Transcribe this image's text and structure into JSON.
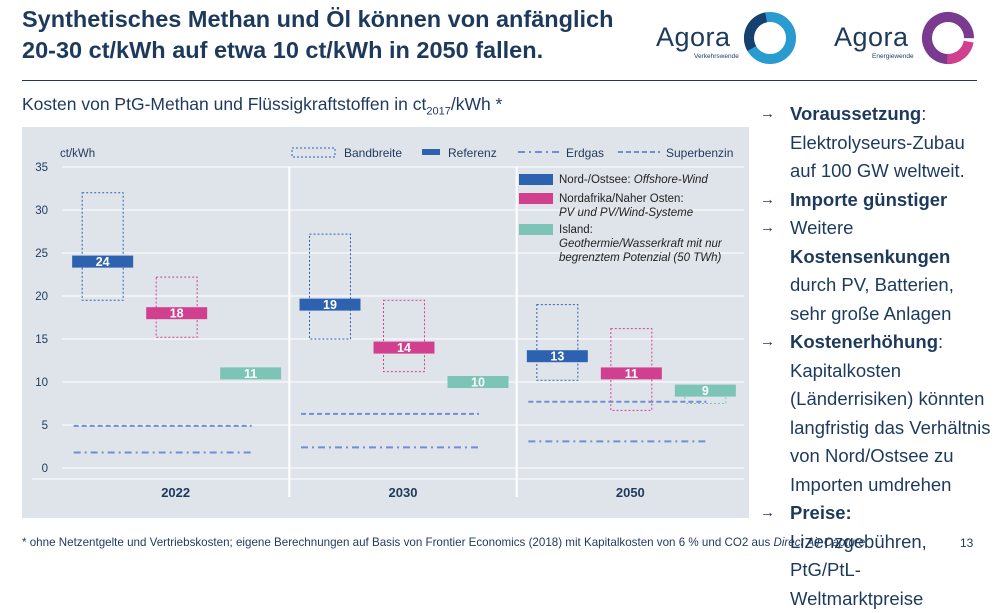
{
  "header": {
    "title_line1": "Synthetisches Methan und Öl können von anfänglich",
    "title_line2": "20-30 ct/kWh auf etwa 10 ct/kWh in 2050 fallen."
  },
  "logos": [
    {
      "name": "Agora",
      "sub": "Verkehrswende"
    },
    {
      "name": "Agora",
      "sub": "Energiewende"
    }
  ],
  "subtitle": {
    "text_a": "Kosten von PtG-Methan und Flüssigkraftstoffen in ct",
    "sub": "2017",
    "text_b": "/kWh *"
  },
  "bullets": [
    {
      "bold": "Voraussetzung",
      "rest": ": Elektrolyseurs-Zubau auf 100 GW weltweit."
    },
    {
      "bold": "Importe günstiger",
      "rest": ""
    },
    {
      "pre": "Weitere ",
      "bold": "Kostensenkungen",
      "rest": " durch PV, Batterien, sehr große Anlagen"
    },
    {
      "bold": "Kostenerhöhung",
      "rest": ": Kapitalkosten (Länderrisiken) könnten langfristig das Verhältnis von Nord/Ostsee zu Importen umdrehen"
    },
    {
      "bold": "Preise:",
      "rest": " Lizenzgebühren, PtG/PtL-Weltmarktpreise"
    }
  ],
  "footnote": {
    "text": "* ohne Netzentgelte und Vertriebskosten; eigene Berechnungen auf Basis von Frontier Economics (2018) mit Kapitalkosten von 6 % und CO2 aus ",
    "italic": "Direct Air Capture"
  },
  "page_number": "13",
  "colors": {
    "navy": "#1d3a5c",
    "blue": "#2c62b0",
    "pink": "#d1408f",
    "teal": "#7cc4b6",
    "dash": "#6f8fd0",
    "bg": "#dfe4eb"
  },
  "chart_data": {
    "type": "bar",
    "ylabel": "ct/kWh",
    "ylim": [
      0,
      35
    ],
    "yticks": [
      0,
      5,
      10,
      15,
      20,
      25,
      30,
      35
    ],
    "categories": [
      "2022",
      "2030",
      "2050"
    ],
    "series": [
      {
        "name": "Nord-/Ostsee: Offshore-Wind",
        "color": "#2c62b0",
        "values": [
          24,
          19,
          13
        ],
        "ranges": [
          [
            19.5,
            32
          ],
          [
            15,
            27.2
          ],
          [
            10.2,
            19
          ]
        ]
      },
      {
        "name": "Nordafrika/Naher Osten: PV und PV/Wind-Systeme",
        "color": "#d1408f",
        "values": [
          18,
          14,
          11
        ],
        "ranges": [
          [
            15.2,
            22.2
          ],
          [
            11.2,
            19.5
          ],
          [
            6.7,
            16.2
          ]
        ]
      },
      {
        "name": "Island: Geothermie/Wasserkraft mit nur begrenztem Potenzial (50 TWh)",
        "color": "#7cc4b6",
        "values": [
          11,
          10,
          9
        ],
        "ranges": [
          [
            null,
            null
          ],
          [
            null,
            null
          ],
          [
            7.5,
            9.5
          ]
        ]
      }
    ],
    "erdgas": [
      1.8,
      2.4,
      3.1
    ],
    "superbenzin": [
      4.9,
      6.3,
      7.7
    ],
    "legend_top": [
      "Bandbreite",
      "Referenz",
      "Erdgas",
      "Superbenzin"
    ],
    "legend_series": [
      {
        "line1": "Nord-/Ostsee: ",
        "italic1": "Offshore-Wind",
        "line2": ""
      },
      {
        "line1": "Nordafrika/Naher Osten:",
        "italic1": "",
        "line2": "PV und PV/Wind-Systeme"
      },
      {
        "line1": "Island:",
        "italic1": "",
        "line2": "Geothermie/Wasserkraft mit nur",
        "line3": "begrenztem Potenzial (50 TWh)"
      }
    ]
  }
}
